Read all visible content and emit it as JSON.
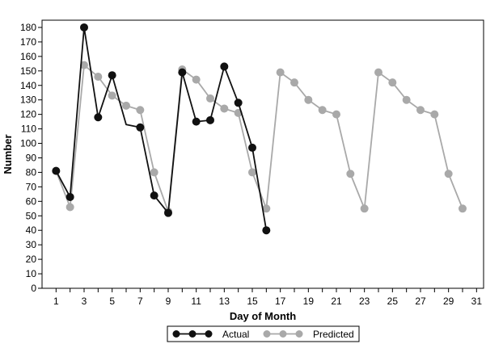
{
  "chart_data": {
    "type": "line",
    "title": "",
    "xlabel": "Day of Month",
    "ylabel": "Number",
    "xlim": [
      0,
      31.5
    ],
    "ylim": [
      0,
      185
    ],
    "x_ticks": [
      1,
      3,
      5,
      7,
      9,
      11,
      13,
      15,
      17,
      19,
      21,
      23,
      25,
      27,
      29,
      31
    ],
    "y_ticks": [
      0,
      10,
      20,
      30,
      40,
      50,
      60,
      70,
      80,
      90,
      100,
      110,
      120,
      130,
      140,
      150,
      160,
      170,
      180
    ],
    "grid": false,
    "legend_position": "bottom-center",
    "series": [
      {
        "name": "Actual",
        "color": "#111111",
        "markers": true,
        "x": [
          1,
          2,
          3,
          4,
          5,
          6,
          7,
          8,
          9,
          10,
          11,
          12,
          13,
          14,
          15,
          16
        ],
        "y": [
          81,
          63,
          180,
          118,
          147,
          113,
          111,
          64,
          52,
          149,
          115,
          116,
          153,
          128,
          97,
          40
        ],
        "marker_x": [
          1,
          2,
          3,
          4,
          5,
          7,
          8,
          9,
          10,
          11,
          12,
          13,
          14,
          15,
          16
        ]
      },
      {
        "name": "Predicted",
        "color": "#a9a9a9",
        "markers": true,
        "x": [
          1,
          2,
          3,
          4,
          5,
          6,
          7,
          8,
          9,
          10,
          11,
          12,
          13,
          14,
          15,
          16,
          17,
          18,
          19,
          20,
          21,
          22,
          23,
          24,
          25,
          26,
          27,
          28,
          29,
          30
        ],
        "y": [
          81,
          56,
          154,
          146,
          133,
          126,
          123,
          80,
          53,
          151,
          144,
          131,
          124,
          121,
          80,
          55,
          149,
          142,
          130,
          123,
          120,
          79,
          55,
          149,
          142,
          130,
          123,
          120,
          79,
          55
        ]
      }
    ]
  }
}
